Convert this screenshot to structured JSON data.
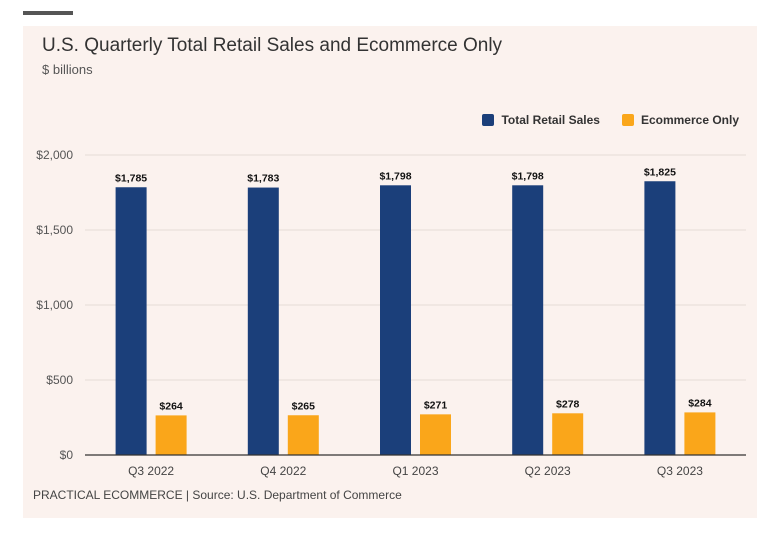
{
  "title": "U.S. Quarterly Total Retail Sales and Ecommerce Only",
  "subtitle": "$ billions",
  "source": "PRACTICAL ECOMMERCE | Source: U.S. Department of Commerce",
  "colors": {
    "retail": "#1b3f7a",
    "ecommerce": "#faa61a"
  },
  "chart_data": {
    "type": "bar",
    "categories": [
      "Q3 2022",
      "Q4 2022",
      "Q1 2023",
      "Q2 2023",
      "Q3 2023"
    ],
    "series": [
      {
        "name": "Total Retail Sales",
        "values": [
          1785,
          1783,
          1798,
          1798,
          1825
        ],
        "labels": [
          "$1,785",
          "$1,783",
          "$1,798",
          "$1,798",
          "$1,825"
        ]
      },
      {
        "name": "Ecommerce Only",
        "values": [
          264,
          265,
          271,
          278,
          284
        ],
        "labels": [
          "$264",
          "$265",
          "$271",
          "$278",
          "$284"
        ]
      }
    ],
    "yticks": [
      0,
      500,
      1000,
      1500,
      2000
    ],
    "ytick_labels": [
      "$0",
      "$500",
      "$1,000",
      "$1,500",
      "$2,000"
    ],
    "ylim": [
      0,
      2000
    ],
    "grid": true,
    "legend": "top-right"
  }
}
